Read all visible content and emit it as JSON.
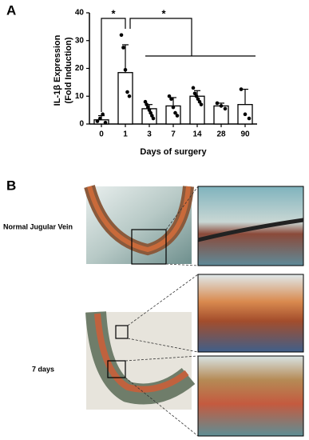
{
  "chart_data": {
    "type": "bar",
    "panel_label": "A",
    "ylabel": [
      "IL-1β Expression",
      "(Fold Induction)"
    ],
    "xlabel": "Days of surgery",
    "categories": [
      "0",
      "1",
      "3",
      "7",
      "14",
      "28",
      "90"
    ],
    "values": [
      1.5,
      18.5,
      5.5,
      6.5,
      10,
      6.5,
      7
    ],
    "errors": [
      1.5,
      10,
      1.5,
      3,
      2,
      1,
      5.5
    ],
    "points": [
      [
        1,
        2,
        3.5,
        0.5
      ],
      [
        32,
        27.5,
        19.5,
        11.5,
        10
      ],
      [
        8,
        7,
        6,
        5,
        4,
        3,
        2
      ],
      [
        10,
        9,
        6,
        4,
        3
      ],
      [
        13,
        11,
        10,
        9,
        8,
        7
      ],
      [
        7.5,
        6.5,
        5.5
      ],
      [
        12.5,
        3.5,
        2
      ]
    ],
    "color": "#ffffff",
    "edge_color": "#000000",
    "point_color": "#000000",
    "ylim": [
      0,
      40
    ],
    "yticks": [
      0,
      10,
      20,
      30,
      40
    ],
    "annotations": [
      "*",
      "*"
    ]
  },
  "panel_b": {
    "label": "B",
    "rows": [
      "Normal Jugular Vein",
      "7 days"
    ]
  }
}
